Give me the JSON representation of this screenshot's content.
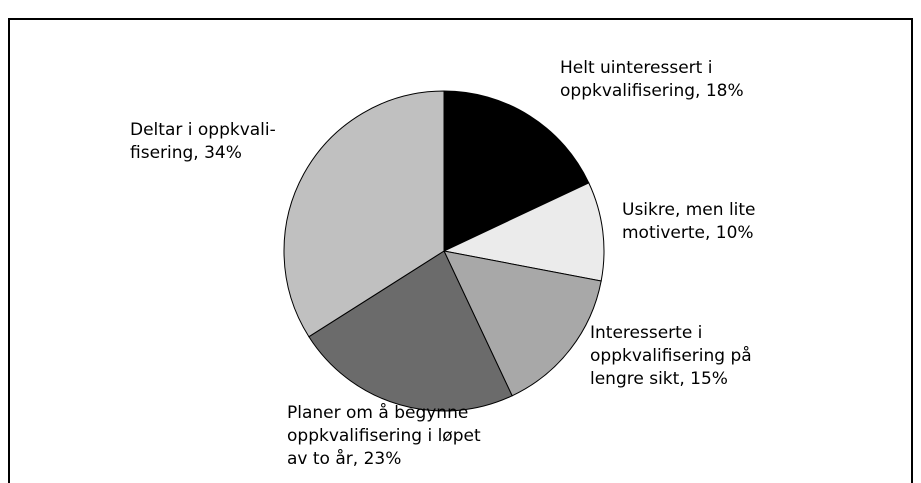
{
  "chart_data": {
    "type": "pie",
    "values": [
      18,
      10,
      15,
      23,
      34
    ],
    "colors": [
      "#000000",
      "#ebebeb",
      "#a8a8a8",
      "#6b6b6b",
      "#c0c0c0"
    ],
    "labels": [
      [
        "Helt uinteressert i",
        "oppkvalifisering, 18%"
      ],
      [
        "Usikre, men lite",
        "motiverte, 10%"
      ],
      [
        "Interesserte i",
        "oppkvalifisering på",
        "lengre sikt, 15%"
      ],
      [
        "Planer om å begynne",
        "oppkvalifisering i løpet",
        "av to år, 23%"
      ],
      [
        "Deltar i oppkvali-",
        "fisering, 34%"
      ]
    ]
  }
}
